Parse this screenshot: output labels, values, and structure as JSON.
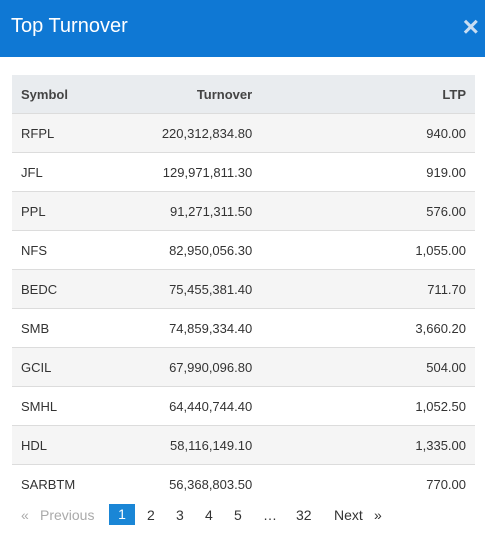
{
  "header": {
    "title": "Top Turnover",
    "close": "×"
  },
  "table": {
    "columns": [
      "Symbol",
      "Turnover",
      "LTP"
    ],
    "rows": [
      [
        "RFPL",
        "220,312,834.80",
        "940.00"
      ],
      [
        "JFL",
        "129,971,811.30",
        "919.00"
      ],
      [
        "PPL",
        "91,271,311.50",
        "576.00"
      ],
      [
        "NFS",
        "82,950,056.30",
        "1,055.00"
      ],
      [
        "BEDC",
        "75,455,381.40",
        "711.70"
      ],
      [
        "SMB",
        "74,859,334.40",
        "3,660.20"
      ],
      [
        "GCIL",
        "67,990,096.80",
        "504.00"
      ],
      [
        "SMHL",
        "64,440,744.40",
        "1,052.50"
      ],
      [
        "HDL",
        "58,116,149.10",
        "1,335.00"
      ],
      [
        "SARBTM",
        "56,368,803.50",
        "770.00"
      ]
    ]
  },
  "pagination": {
    "prev_icon": "«",
    "prev": "Previous",
    "pages": [
      "1",
      "2",
      "3",
      "4",
      "5",
      "…",
      "32"
    ],
    "next": "Next",
    "next_icon": "»"
  }
}
